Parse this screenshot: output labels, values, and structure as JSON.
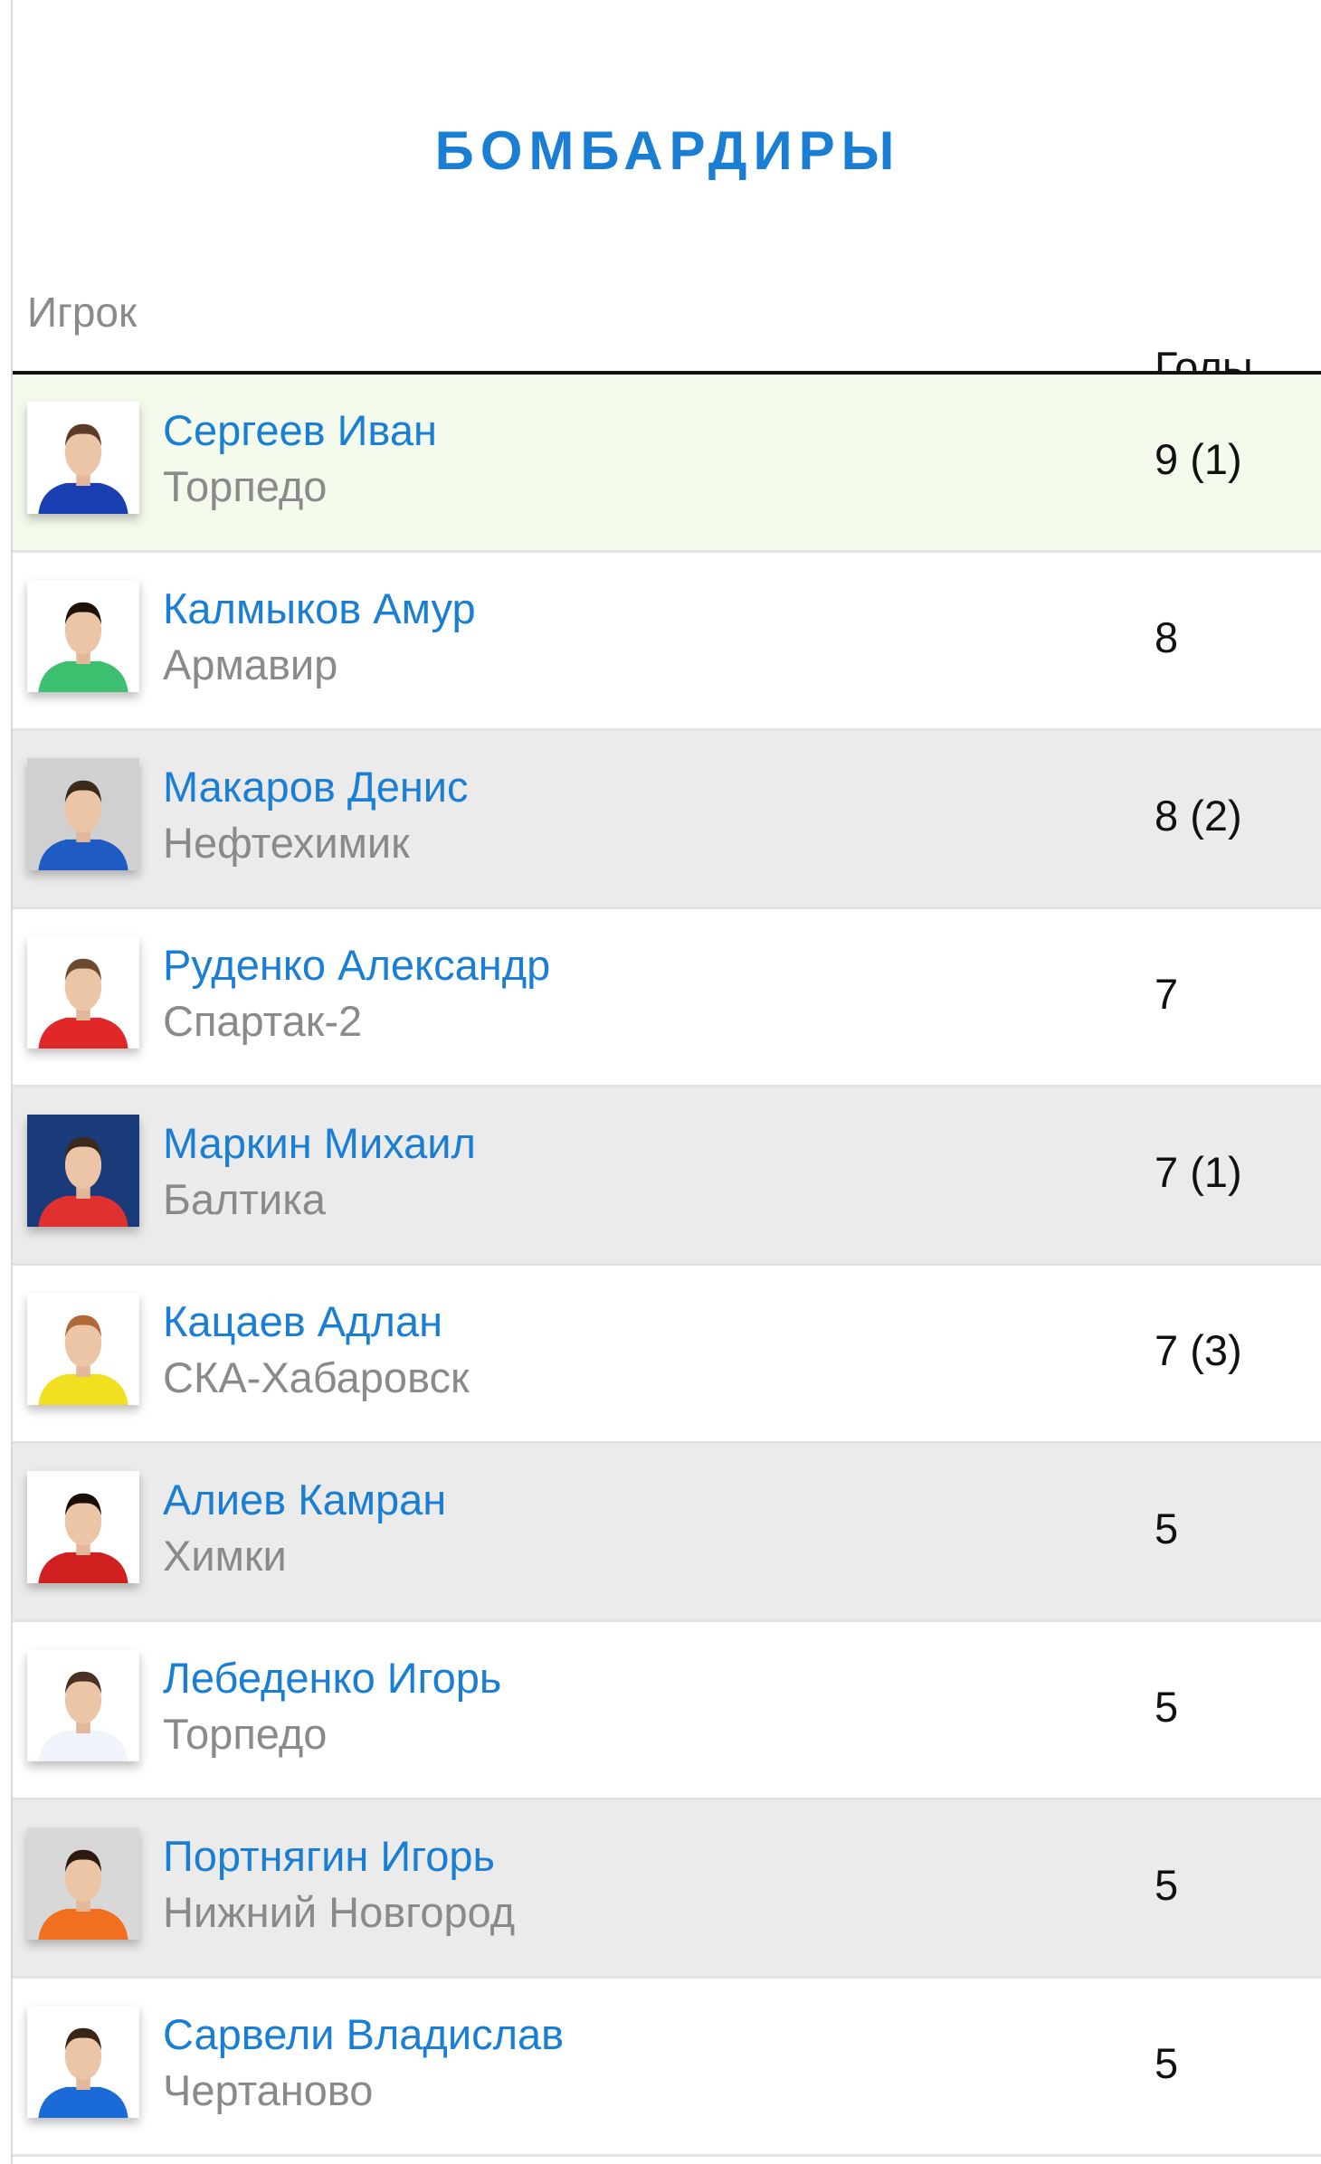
{
  "title": "БОМБАРДИРЫ",
  "columns": {
    "player": "Игрок",
    "goals": "Голы"
  },
  "colors": {
    "accent": "#1a7fd4",
    "leader_row": "#f4fbec",
    "alt_row": "#ebebeb"
  },
  "players": [
    {
      "name": "Сергеев Иван",
      "team": "Торпедо",
      "goals": "9 (1)",
      "shirt": "#1a3fb0",
      "bg": "#ffffff",
      "hair": "#5a3c28"
    },
    {
      "name": "Калмыков Амур",
      "team": "Армавир",
      "goals": "8",
      "shirt": "#3cc070",
      "bg": "#ffffff",
      "hair": "#1e1208"
    },
    {
      "name": "Макаров Денис",
      "team": "Нефтехимик",
      "goals": "8 (2)",
      "shirt": "#1f5cc4",
      "bg": "#d0d0d0",
      "hair": "#3a2a1c"
    },
    {
      "name": "Руденко Александр",
      "team": "Спартак-2",
      "goals": "7",
      "shirt": "#e02828",
      "bg": "#ffffff",
      "hair": "#6a4a30"
    },
    {
      "name": "Маркин Михаил",
      "team": "Балтика",
      "goals": "7 (1)",
      "shirt": "#e03030",
      "bg": "#1a3a7a",
      "hair": "#3a2a1c"
    },
    {
      "name": "Кацаев Адлан",
      "team": "СКА-Хабаровск",
      "goals": "7 (3)",
      "shirt": "#f0e020",
      "bg": "#ffffff",
      "hair": "#b06a3a"
    },
    {
      "name": "Алиев Камран",
      "team": "Химки",
      "goals": "5",
      "shirt": "#d02020",
      "bg": "#ffffff",
      "hair": "#1a1008"
    },
    {
      "name": "Лебеденко Игорь",
      "team": "Торпедо",
      "goals": "5",
      "shirt": "#f0f4fa",
      "bg": "#ffffff",
      "hair": "#4a3020"
    },
    {
      "name": "Портнягин Игорь",
      "team": "Нижний Новгород",
      "goals": "5",
      "shirt": "#f07020",
      "bg": "#d8d8d8",
      "hair": "#2a1a10"
    },
    {
      "name": "Сарвели Владислав",
      "team": "Чертаново",
      "goals": "5",
      "shirt": "#1a6ad8",
      "bg": "#ffffff",
      "hair": "#3a2618"
    }
  ]
}
